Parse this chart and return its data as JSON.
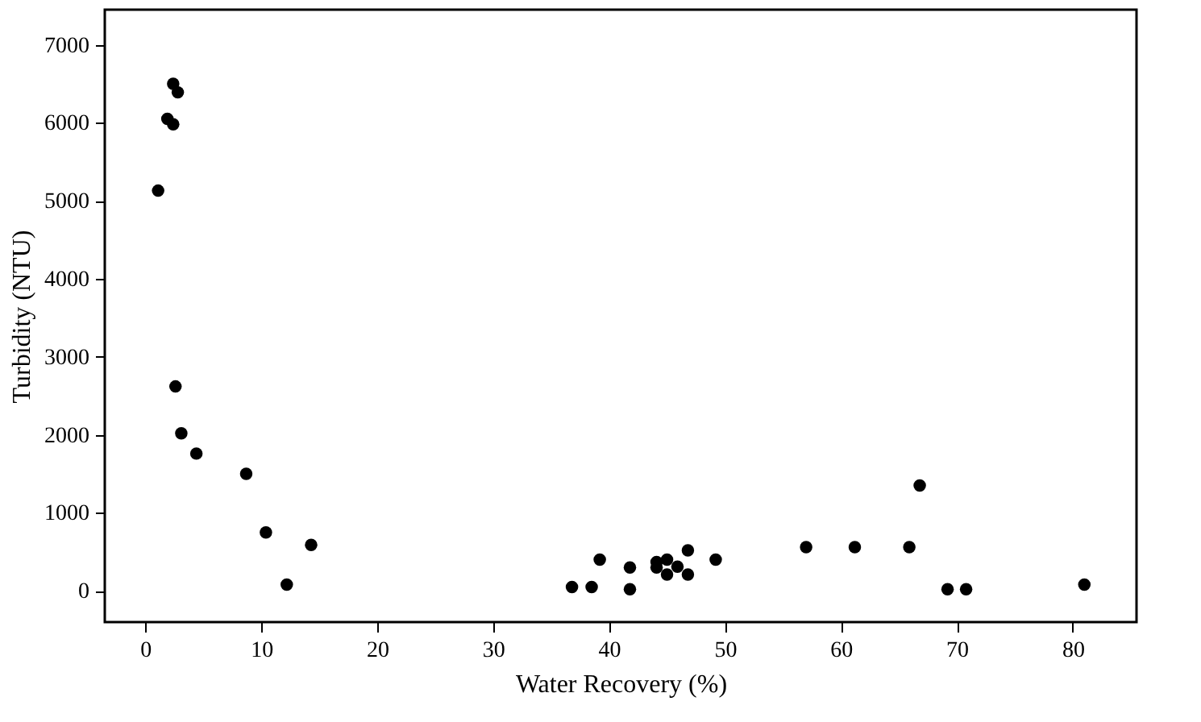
{
  "chart_data": {
    "type": "scatter",
    "xlabel": "Water Recovery (%)",
    "ylabel": "Turbidity (NTU)",
    "x": [
      2.4,
      2.8,
      1.9,
      2.4,
      1.1,
      2.6,
      3.1,
      4.4,
      8.7,
      10.4,
      12.2,
      14.3,
      36.8,
      38.5,
      39.2,
      41.8,
      41.8,
      44.1,
      44.1,
      45.0,
      45.0,
      45.9,
      46.8,
      46.8,
      49.2,
      57.0,
      61.2,
      65.9,
      66.8,
      69.2,
      70.8,
      81.0
    ],
    "series": [
      {
        "color": "#000000",
        "values": [
          6500,
          6390,
          6050,
          5980,
          5130,
          2620,
          2020,
          1760,
          1500,
          750,
          80,
          590,
          50,
          50,
          400,
          300,
          20,
          370,
          300,
          400,
          210,
          310,
          520,
          210,
          400,
          560,
          560,
          560,
          1350,
          20,
          20,
          80
        ]
      }
    ],
    "xlim": [
      -3.5,
      85.5
    ],
    "ylim": [
      -400,
      7450
    ],
    "xticks": [
      0,
      10,
      20,
      30,
      40,
      50,
      60,
      70,
      80
    ],
    "yticks": [
      0,
      1000,
      2000,
      3000,
      4000,
      5000,
      6000,
      7000
    ],
    "marker": "circle",
    "grid": false
  }
}
